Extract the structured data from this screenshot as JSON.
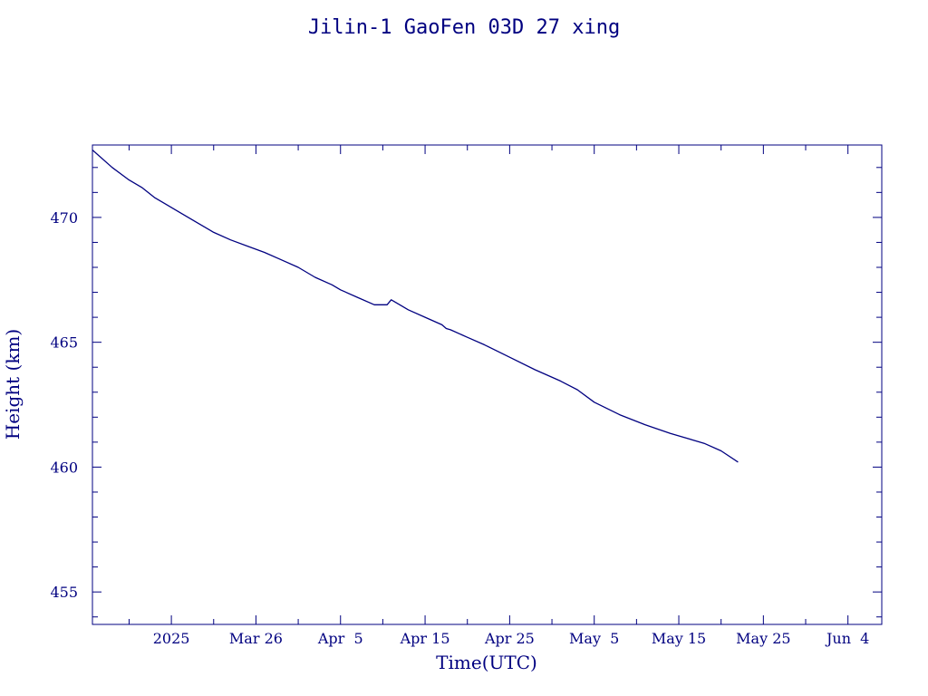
{
  "chart_data": {
    "type": "line",
    "title": "Jilin-1 GaoFen 03D 27 xing",
    "xlabel": "Time(UTC)",
    "ylabel": "Height (km)",
    "x_is_date": true,
    "xlim": [
      "2025-03-06T16:00",
      "2025-06-08T00:00"
    ],
    "ylim": [
      453.7,
      472.9
    ],
    "x_ticks": [
      {
        "date": "2025-03-16",
        "label": "2025"
      },
      {
        "date": "2025-03-26",
        "label": "Mar 26"
      },
      {
        "date": "2025-04-05",
        "label": "Apr  5"
      },
      {
        "date": "2025-04-15",
        "label": "Apr 15"
      },
      {
        "date": "2025-04-25",
        "label": "Apr 25"
      },
      {
        "date": "2025-05-05",
        "label": "May  5"
      },
      {
        "date": "2025-05-15",
        "label": "May 15"
      },
      {
        "date": "2025-05-25",
        "label": "May 25"
      },
      {
        "date": "2025-06-04",
        "label": "Jun  4"
      }
    ],
    "y_ticks": [
      {
        "value": 455,
        "label": "455"
      },
      {
        "value": 460,
        "label": "460"
      },
      {
        "value": 465,
        "label": "465"
      },
      {
        "value": 470,
        "label": "470"
      }
    ],
    "y_minor_step": 1,
    "x_minor_step_days": 5,
    "grid": false,
    "color": "#000080",
    "series": [
      {
        "x": [
          "2025-03-06T16:00",
          "2025-03-09T00:00",
          "2025-03-11T00:00",
          "2025-03-12T12:00",
          "2025-03-14T00:00",
          "2025-03-15T00:00",
          "2025-03-17T00:00",
          "2025-03-19T00:00",
          "2025-03-21T00:00",
          "2025-03-23T00:00",
          "2025-03-25T00:00",
          "2025-03-27T00:00",
          "2025-03-29T00:00",
          "2025-03-31T00:00",
          "2025-04-02T00:00",
          "2025-04-04T00:00",
          "2025-04-05T00:00",
          "2025-04-07T00:00",
          "2025-04-09T00:00",
          "2025-04-10T12:00",
          "2025-04-11T00:00",
          "2025-04-12T00:00",
          "2025-04-13T00:00",
          "2025-04-15T00:00",
          "2025-04-17T00:00",
          "2025-04-17T12:00",
          "2025-04-18T00:00",
          "2025-04-20T00:00",
          "2025-04-22T00:00",
          "2025-04-25T00:00",
          "2025-04-28T00:00",
          "2025-05-01T00:00",
          "2025-05-03T00:00",
          "2025-05-05T00:00",
          "2025-05-08T00:00",
          "2025-05-11T00:00",
          "2025-05-14T00:00",
          "2025-05-17T00:00",
          "2025-05-18T00:00",
          "2025-05-20T00:00",
          "2025-05-22T00:00"
        ],
        "y": [
          472.7,
          472.0,
          471.5,
          471.2,
          470.8,
          470.6,
          470.2,
          469.8,
          469.4,
          469.1,
          468.85,
          468.6,
          468.3,
          468.0,
          467.6,
          467.3,
          467.1,
          466.8,
          466.5,
          466.5,
          466.7,
          466.5,
          466.3,
          466.0,
          465.7,
          465.55,
          465.5,
          465.2,
          464.9,
          464.4,
          463.9,
          463.45,
          463.1,
          462.6,
          462.1,
          461.7,
          461.35,
          461.05,
          460.95,
          460.65,
          460.2
        ]
      }
    ]
  }
}
